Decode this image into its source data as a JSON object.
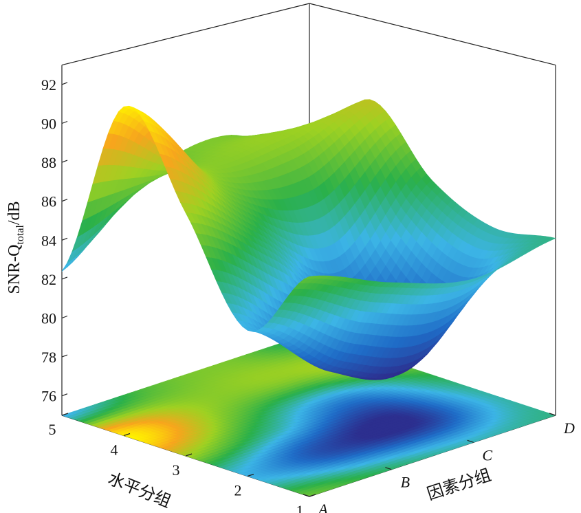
{
  "chart_data": {
    "type": "surface",
    "x_axis": {
      "label": "因素分组",
      "categories": [
        "A",
        "B",
        "C",
        "D"
      ]
    },
    "y_axis": {
      "label": "水平分组",
      "ticks": [
        "1",
        "2",
        "3",
        "4",
        "5"
      ]
    },
    "z_axis": {
      "label": "SNR-Q",
      "label_subscript": "total",
      "label_unit": "/dB",
      "ticks": [
        "76",
        "78",
        "80",
        "82",
        "84",
        "86",
        "88",
        "90",
        "92"
      ],
      "range": [
        75,
        93
      ]
    },
    "grid": [
      [
        86.3,
        84.6,
        83.4,
        84.1
      ],
      [
        82.5,
        79.0,
        77.9,
        83.6
      ],
      [
        87.5,
        84.2,
        80.6,
        85.0
      ],
      [
        91.9,
        87.2,
        86.8,
        88.1
      ],
      [
        82.4,
        85.8,
        86.6,
        84.2
      ]
    ],
    "colormap": [
      "#2c2f8f",
      "#1f6cc7",
      "#3cb5e6",
      "#2ab04a",
      "#9ed122",
      "#f7a51d",
      "#fff200"
    ],
    "grid_on": false,
    "base_contour": true
  }
}
